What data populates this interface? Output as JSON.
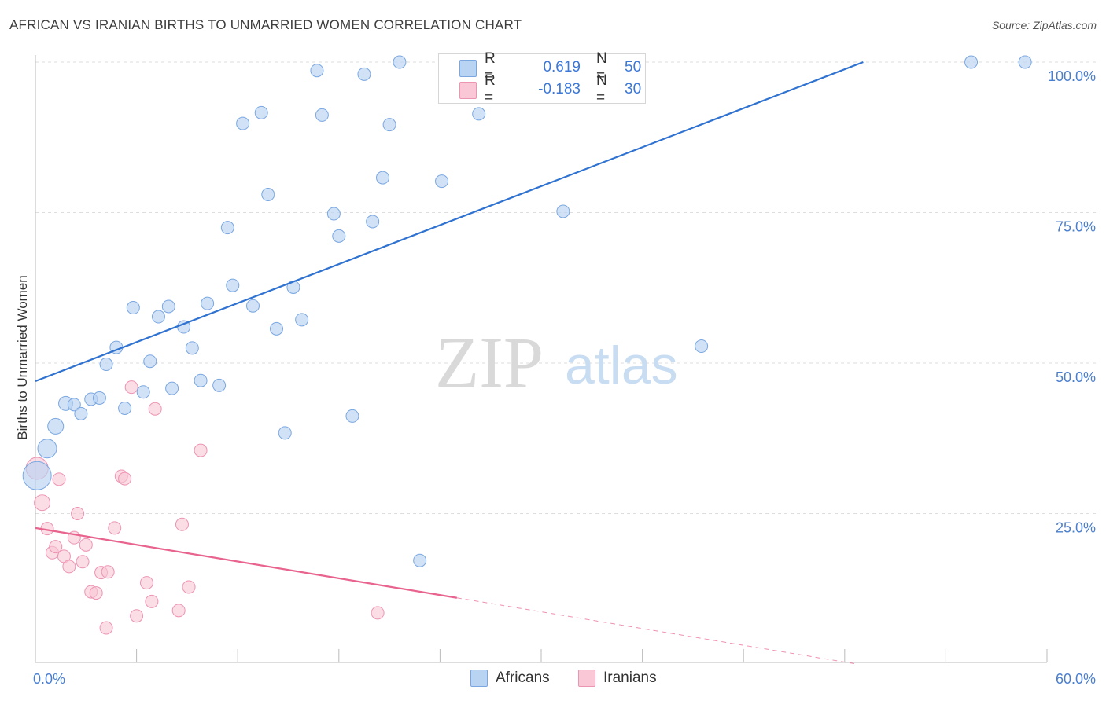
{
  "header": {
    "title": "AFRICAN VS IRANIAN BIRTHS TO UNMARRIED WOMEN CORRELATION CHART",
    "source": "Source: ZipAtlas.com"
  },
  "watermark": {
    "zip": "ZIP",
    "atlas": "atlas"
  },
  "legend": {
    "r_label": "R =",
    "n_label": "N =",
    "rows": [
      {
        "r": "0.619",
        "n": "50",
        "color": "#a8c8f0"
      },
      {
        "r": "-0.183",
        "n": "30",
        "color": "#f7bfd0"
      }
    ]
  },
  "bottom_legend": {
    "items": [
      "Africans",
      "Iranians"
    ]
  },
  "colors": {
    "blue_fill": "#b9d3f3",
    "blue_stroke": "#7aa7e0",
    "blue_line": "#2f72d0",
    "pink_fill": "#f9c7d6",
    "pink_stroke": "#ec94b2",
    "pink_line": "#e8638e",
    "tick_text": "#4a7fd0",
    "grid": "#dedede"
  },
  "chart_data": {
    "type": "scatter",
    "title": "AFRICAN VS IRANIAN BIRTHS TO UNMARRIED WOMEN CORRELATION CHART",
    "xlabel": "",
    "ylabel": "Births to Unmarried Women",
    "xlim": [
      0,
      60
    ],
    "ylim": [
      0,
      102
    ],
    "x_tick_labels": [
      "0.0%",
      "60.0%"
    ],
    "y_ticks": [
      25,
      50,
      75,
      100
    ],
    "y_tick_labels": [
      "25.0%",
      "50.0%",
      "75.0%",
      "100.0%"
    ],
    "grid": true,
    "legend_placement": "top-center",
    "series": [
      {
        "name": "Africans",
        "color": "#a8c8f0",
        "points": [
          [
            0.1,
            31.3,
            18
          ],
          [
            0.7,
            35.8,
            12
          ],
          [
            1.2,
            39.5,
            10
          ],
          [
            1.8,
            43.3,
            9
          ],
          [
            2.3,
            43.1,
            8
          ],
          [
            2.7,
            41.6,
            8
          ],
          [
            3.3,
            44.0,
            8
          ],
          [
            3.8,
            44.2,
            8
          ],
          [
            4.2,
            49.8,
            8
          ],
          [
            4.8,
            52.6,
            8
          ],
          [
            5.3,
            42.5,
            8
          ],
          [
            5.8,
            59.2,
            8
          ],
          [
            6.4,
            45.2,
            8
          ],
          [
            6.8,
            50.3,
            8
          ],
          [
            7.3,
            57.7,
            8
          ],
          [
            7.9,
            59.4,
            8
          ],
          [
            8.1,
            45.8,
            8
          ],
          [
            8.8,
            56.0,
            8
          ],
          [
            9.3,
            52.5,
            8
          ],
          [
            9.8,
            47.1,
            8
          ],
          [
            10.2,
            59.9,
            8
          ],
          [
            10.9,
            46.3,
            8
          ],
          [
            11.4,
            72.5,
            8
          ],
          [
            11.7,
            62.9,
            8
          ],
          [
            12.3,
            89.8,
            8
          ],
          [
            12.9,
            59.5,
            8
          ],
          [
            13.4,
            91.6,
            8
          ],
          [
            13.8,
            78.0,
            8
          ],
          [
            14.3,
            55.7,
            8
          ],
          [
            14.8,
            38.4,
            8
          ],
          [
            15.3,
            62.6,
            8
          ],
          [
            15.8,
            57.2,
            8
          ],
          [
            16.7,
            98.6,
            8
          ],
          [
            17.0,
            91.2,
            8
          ],
          [
            17.7,
            74.8,
            8
          ],
          [
            18.0,
            71.1,
            8
          ],
          [
            18.8,
            41.2,
            8
          ],
          [
            19.5,
            98.0,
            8
          ],
          [
            20.0,
            73.5,
            8
          ],
          [
            20.6,
            80.8,
            8
          ],
          [
            21.0,
            89.6,
            8
          ],
          [
            21.6,
            100.0,
            8
          ],
          [
            22.8,
            17.2,
            8
          ],
          [
            24.1,
            80.2,
            8
          ],
          [
            26.3,
            91.4,
            8
          ],
          [
            31.3,
            75.2,
            8
          ],
          [
            35.8,
            100.0,
            8
          ],
          [
            39.5,
            52.8,
            8
          ],
          [
            55.5,
            100.0,
            8
          ],
          [
            58.7,
            100.0,
            8
          ]
        ],
        "trendline": {
          "from": [
            0,
            47.0
          ],
          "to": [
            49.1,
            100.0
          ]
        }
      },
      {
        "name": "Iranians",
        "color": "#f7bfd0",
        "points": [
          [
            0.1,
            32.5,
            14
          ],
          [
            0.4,
            26.8,
            10
          ],
          [
            0.7,
            22.5,
            8
          ],
          [
            1.0,
            18.5,
            8
          ],
          [
            1.2,
            19.5,
            8
          ],
          [
            1.4,
            30.7,
            8
          ],
          [
            1.7,
            17.9,
            8
          ],
          [
            2.0,
            16.2,
            8
          ],
          [
            2.3,
            21.0,
            8
          ],
          [
            2.5,
            25.0,
            8
          ],
          [
            2.8,
            17.0,
            8
          ],
          [
            3.0,
            19.8,
            8
          ],
          [
            3.3,
            12.0,
            8
          ],
          [
            3.6,
            11.8,
            8
          ],
          [
            3.9,
            15.2,
            8
          ],
          [
            4.3,
            15.3,
            8
          ],
          [
            4.2,
            6.0,
            8
          ],
          [
            4.7,
            22.6,
            8
          ],
          [
            5.1,
            31.2,
            8
          ],
          [
            5.3,
            30.8,
            8
          ],
          [
            5.7,
            46.0,
            8
          ],
          [
            6.0,
            8.0,
            8
          ],
          [
            6.6,
            13.5,
            8
          ],
          [
            6.9,
            10.4,
            8
          ],
          [
            7.1,
            42.4,
            8
          ],
          [
            8.5,
            8.9,
            8
          ],
          [
            8.7,
            23.2,
            8
          ],
          [
            9.1,
            12.8,
            8
          ],
          [
            9.8,
            35.5,
            8
          ],
          [
            20.3,
            8.5,
            8
          ]
        ],
        "trendline": {
          "from": [
            0,
            22.6
          ],
          "to": [
            25.0,
            11.0
          ],
          "dashed_to": [
            48.7,
            0.0
          ]
        }
      }
    ]
  }
}
